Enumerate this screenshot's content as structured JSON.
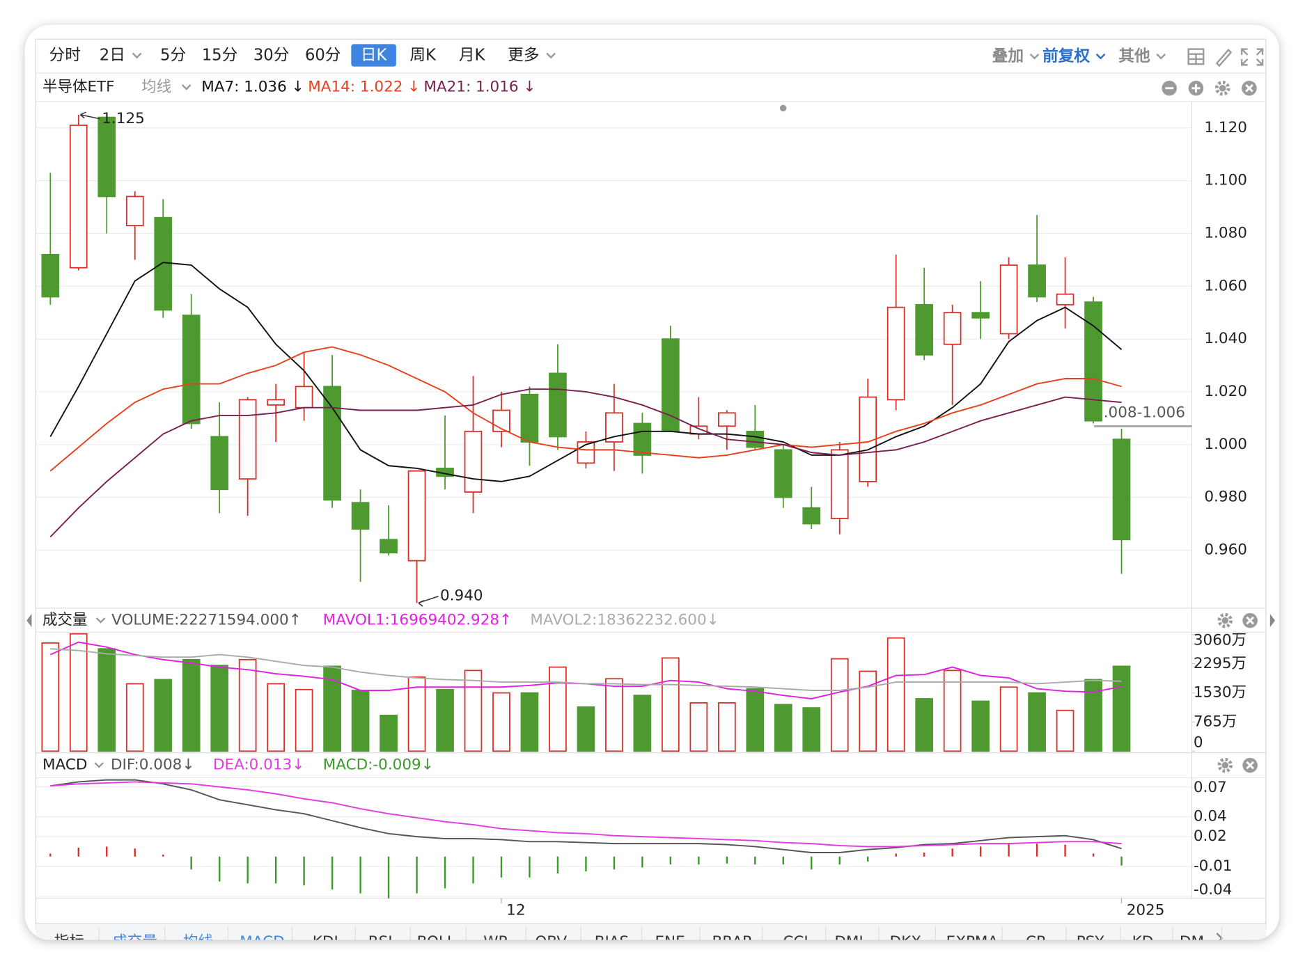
{
  "toolbar": {
    "periods": [
      {
        "label": "分时"
      },
      {
        "label": "2日",
        "menu": true
      },
      {
        "label": "5分"
      },
      {
        "label": "15分"
      },
      {
        "label": "30分"
      },
      {
        "label": "60分"
      },
      {
        "label": "日K",
        "selected": true
      },
      {
        "label": "周K"
      },
      {
        "label": "月K"
      },
      {
        "label": "更多",
        "menu": true
      }
    ],
    "options": [
      {
        "label": "叠加",
        "menu": true
      },
      {
        "label": "前复权",
        "menu": true,
        "selected": true
      },
      {
        "label": "其他",
        "menu": true
      }
    ]
  },
  "indicator_tabs": [
    {
      "label": "指标"
    },
    {
      "label": "成交量",
      "active": true
    },
    {
      "label": "均线",
      "active": true
    },
    {
      "label": "MACD",
      "active": true
    },
    {
      "label": "KDJ"
    },
    {
      "label": "RSI"
    },
    {
      "label": "BOLL"
    },
    {
      "label": "WR"
    },
    {
      "label": "OBV"
    },
    {
      "label": "BIAS"
    },
    {
      "label": "ENE"
    },
    {
      "label": "BRAR"
    },
    {
      "label": "CCI"
    },
    {
      "label": "DMI"
    },
    {
      "label": "DKX"
    },
    {
      "label": "EXPMA"
    },
    {
      "label": "CR"
    },
    {
      "label": "PSY"
    },
    {
      "label": "KD"
    },
    {
      "label": "DM"
    }
  ],
  "chart_data": [
    {
      "type": "candlestick",
      "title": "半导体ETF",
      "indicator": "均线",
      "up_color": "#d9302a",
      "down_color": "#4e9a31",
      "ylim": [
        0.939,
        1.13
      ],
      "yticks": [
        {
          "value": 0.96,
          "label": "0.960"
        },
        {
          "value": 0.98,
          "label": "0.980"
        },
        {
          "value": 1.0,
          "label": "1.000"
        },
        {
          "value": 1.02,
          "label": "1.020"
        },
        {
          "value": 1.04,
          "label": "1.040"
        },
        {
          "value": 1.06,
          "label": "1.060"
        },
        {
          "value": 1.08,
          "label": "1.080"
        },
        {
          "value": 1.1,
          "label": "1.100"
        },
        {
          "value": 1.12,
          "label": "1.120"
        }
      ],
      "grid": true,
      "series": [
        {
          "name": "半导体ETF",
          "open": [
            1.072,
            1.067,
            1.124,
            1.083,
            1.086,
            1.049,
            1.003,
            0.987,
            1.015,
            1.014,
            1.022,
            0.978,
            0.964,
            0.956,
            0.991,
            0.982,
            1.005,
            1.019,
            1.027,
            0.993,
            1.001,
            1.008,
            1.04,
            1.004,
            1.007,
            1.005,
            0.998,
            0.976,
            0.972,
            0.986,
            1.017,
            1.053,
            1.038,
            1.05,
            1.042,
            1.068,
            1.053,
            1.054,
            1.002
          ],
          "high": [
            1.103,
            1.125,
            1.124,
            1.096,
            1.093,
            1.057,
            1.016,
            1.018,
            1.023,
            1.035,
            1.034,
            0.983,
            0.977,
            0.99,
            1.011,
            1.026,
            1.02,
            1.022,
            1.038,
            1.005,
            1.023,
            1.012,
            1.045,
            1.018,
            1.013,
            1.015,
            1.0,
            0.984,
            1.001,
            1.025,
            1.072,
            1.067,
            1.053,
            1.062,
            1.071,
            1.087,
            1.071,
            1.056,
            1.006
          ],
          "low": [
            1.053,
            1.066,
            1.08,
            1.07,
            1.048,
            1.006,
            0.974,
            0.973,
            1.001,
            1.009,
            0.976,
            0.948,
            0.958,
            0.94,
            0.983,
            0.974,
            0.999,
            0.992,
            0.998,
            0.991,
            0.99,
            0.989,
            1.005,
            1.002,
            0.998,
            0.998,
            0.976,
            0.968,
            0.966,
            0.984,
            1.013,
            1.032,
            1.015,
            1.04,
            1.04,
            1.054,
            1.044,
            1.008,
            0.951
          ],
          "close": [
            1.056,
            1.121,
            1.094,
            1.094,
            1.051,
            1.008,
            0.983,
            1.017,
            1.017,
            1.022,
            0.979,
            0.968,
            0.959,
            0.99,
            0.988,
            1.005,
            1.013,
            1.001,
            1.003,
            1.001,
            1.012,
            0.996,
            1.005,
            1.007,
            1.012,
            0.999,
            0.98,
            0.97,
            0.998,
            1.018,
            1.052,
            1.034,
            1.05,
            1.048,
            1.068,
            1.056,
            1.057,
            1.009,
            0.964
          ]
        },
        {
          "name": "MA7: 1.036 ↓",
          "color": "#111111",
          "values": [
            1.003,
            1.022,
            1.042,
            1.062,
            1.069,
            1.068,
            1.059,
            1.052,
            1.038,
            1.028,
            1.014,
            0.998,
            0.992,
            0.991,
            0.989,
            0.987,
            0.986,
            0.988,
            0.994,
            1.0,
            1.003,
            1.005,
            1.005,
            1.004,
            1.004,
            1.003,
            1.001,
            0.996,
            0.996,
            0.998,
            1.003,
            1.007,
            1.014,
            1.023,
            1.039,
            1.047,
            1.052,
            1.045,
            1.036
          ]
        },
        {
          "name": "MA14: 1.022 ↓",
          "color": "#e8401c",
          "values": [
            0.99,
            0.999,
            1.008,
            1.016,
            1.021,
            1.023,
            1.023,
            1.027,
            1.03,
            1.035,
            1.037,
            1.034,
            1.03,
            1.025,
            1.02,
            1.012,
            1.006,
            1.001,
            0.999,
            0.998,
            0.998,
            0.997,
            0.996,
            0.995,
            0.996,
            0.998,
            1.0,
            0.999,
            1.0,
            1.001,
            1.005,
            1.008,
            1.012,
            1.015,
            1.019,
            1.023,
            1.025,
            1.025,
            1.022
          ]
        },
        {
          "name": "MA21: 1.016 ↓",
          "color": "#7a1f4f",
          "values": [
            0.965,
            0.976,
            0.986,
            0.995,
            1.004,
            1.009,
            1.011,
            1.011,
            1.012,
            1.014,
            1.014,
            1.013,
            1.013,
            1.013,
            1.014,
            1.015,
            1.019,
            1.021,
            1.021,
            1.02,
            1.018,
            1.015,
            1.011,
            1.006,
            1.002,
            1.001,
            1.0,
            0.997,
            0.996,
            0.997,
            0.998,
            1.001,
            1.005,
            1.009,
            1.012,
            1.015,
            1.018,
            1.017,
            1.016
          ]
        }
      ],
      "annotations": [
        {
          "value": 1.125,
          "label": "1.125"
        },
        {
          "value": 0.94,
          "label": "0.940"
        }
      ],
      "price_tag": ".008-1.006"
    },
    {
      "type": "bar",
      "title": "成交量",
      "ylim": [
        0,
        3126
      ],
      "yticks": [
        {
          "value": 3060,
          "label": "3060万"
        },
        {
          "value": 2295,
          "label": "2295万"
        },
        {
          "value": 1530,
          "label": "1530万"
        },
        {
          "value": 765,
          "label": "765万"
        },
        0
      ],
      "grid": false,
      "series": [
        {
          "name": "VOLUME:22271594.000↑",
          "type": "bar",
          "color": "#555555",
          "values": [
            2842,
            3082,
            2689,
            1771,
            1880,
            2405,
            2252,
            2405,
            1771,
            1618,
            2230,
            1596,
            940,
            1946,
            1618,
            2120,
            1530,
            1530,
            2208,
            1159,
            1902,
            1465,
            2448,
            1268,
            1268,
            1640,
            1224,
            1137,
            2427,
            2099,
            2973,
            1377,
            2120,
            1312,
            1683,
            1530,
            1071,
            1880,
            2230
          ]
        },
        {
          "name": "MAVOL1:16969402.928↑",
          "type": "line",
          "color": "#e020e0",
          "values": [
            2536,
            2864,
            2733,
            2536,
            2405,
            2317,
            2208,
            2142,
            2033,
            1967,
            1880,
            1596,
            1596,
            1683,
            1683,
            1683,
            1683,
            1727,
            1793,
            1771,
            1705,
            1705,
            1858,
            1814,
            1640,
            1574,
            1465,
            1377,
            1552,
            1705,
            1989,
            2011,
            2208,
            1989,
            1924,
            1640,
            1574,
            1552,
            1697
          ]
        },
        {
          "name": "MAVOL2:18362232.600↓",
          "type": "line",
          "color": "#aaaaaa",
          "values": [
            2689,
            2645,
            2558,
            2514,
            2470,
            2470,
            2536,
            2470,
            2361,
            2252,
            2208,
            2077,
            1989,
            1924,
            1880,
            1858,
            1814,
            1814,
            1814,
            1771,
            1771,
            1749,
            1749,
            1727,
            1705,
            1683,
            1640,
            1596,
            1596,
            1683,
            1814,
            1814,
            1814,
            1814,
            1814,
            1771,
            1814,
            1858,
            1836
          ]
        }
      ]
    },
    {
      "type": "macd",
      "title": "MACD",
      "ylim": [
        -0.042,
        0.0775
      ],
      "yticks": [
        0.07,
        0.04,
        0.02,
        -0.01,
        -0.04
      ],
      "grid": true,
      "categories": [
        null,
        null,
        null,
        null,
        null,
        null,
        null,
        null,
        null,
        null,
        null,
        null,
        null,
        null,
        null,
        null,
        "12",
        null,
        null,
        null,
        null,
        null,
        null,
        null,
        null,
        null,
        null,
        null,
        null,
        null,
        null,
        null,
        null,
        null,
        null,
        null,
        null,
        null,
        "2025"
      ],
      "series": [
        {
          "name": "DIF:0.008↓",
          "type": "line",
          "color": "#555555",
          "values": [
            0.071,
            0.075,
            0.077,
            0.077,
            0.073,
            0.067,
            0.057,
            0.052,
            0.047,
            0.043,
            0.036,
            0.029,
            0.023,
            0.02,
            0.018,
            0.018,
            0.017,
            0.015,
            0.015,
            0.014,
            0.013,
            0.013,
            0.013,
            0.013,
            0.012,
            0.01,
            0.007,
            0.004,
            0.004,
            0.007,
            0.009,
            0.012,
            0.013,
            0.016,
            0.019,
            0.02,
            0.021,
            0.017,
            0.008
          ]
        },
        {
          "name": "DEA:0.013↓",
          "type": "line",
          "color": "#e03ce0",
          "values": [
            0.071,
            0.073,
            0.074,
            0.075,
            0.074,
            0.073,
            0.07,
            0.067,
            0.063,
            0.058,
            0.054,
            0.048,
            0.043,
            0.039,
            0.035,
            0.032,
            0.028,
            0.026,
            0.024,
            0.023,
            0.021,
            0.02,
            0.019,
            0.018,
            0.017,
            0.016,
            0.014,
            0.013,
            0.011,
            0.01,
            0.01,
            0.011,
            0.012,
            0.013,
            0.013,
            0.014,
            0.015,
            0.015,
            0.013
          ]
        },
        {
          "name": "MACD:-0.009↓",
          "type": "bar",
          "color": "#3a9a2a",
          "values": [
            0.003,
            0.009,
            0.01,
            0.008,
            0.002,
            -0.013,
            -0.025,
            -0.027,
            -0.027,
            -0.029,
            -0.033,
            -0.037,
            -0.042,
            -0.037,
            -0.032,
            -0.027,
            -0.021,
            -0.021,
            -0.017,
            -0.015,
            -0.013,
            -0.011,
            -0.008,
            -0.008,
            -0.007,
            -0.008,
            -0.008,
            -0.013,
            -0.008,
            -0.005,
            0.003,
            0.004,
            0.008,
            0.01,
            0.013,
            0.013,
            0.012,
            0.003,
            -0.009
          ]
        }
      ]
    }
  ]
}
